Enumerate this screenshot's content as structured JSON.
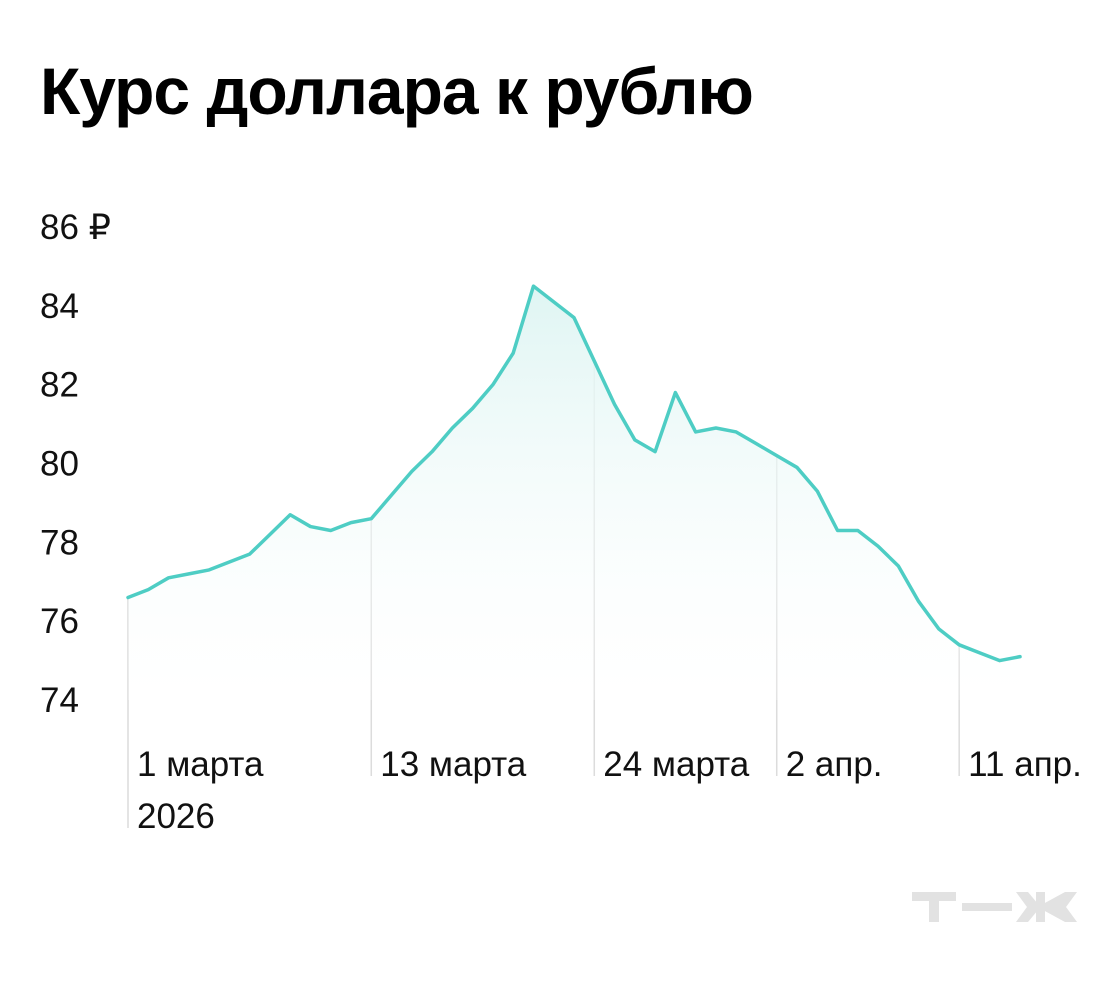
{
  "chart_data": {
    "type": "area",
    "title": "Курс доллара к рублю",
    "ylim": [
      74,
      86
    ],
    "yticks": [
      74,
      76,
      78,
      80,
      82,
      84,
      86
    ],
    "ytick_labels": [
      "74",
      "76",
      "78",
      "80",
      "82",
      "84",
      "86 ₽"
    ],
    "x_dates": [
      "2026-03-01",
      "2026-03-02",
      "2026-03-03",
      "2026-03-04",
      "2026-03-05",
      "2026-03-06",
      "2026-03-07",
      "2026-03-08",
      "2026-03-09",
      "2026-03-10",
      "2026-03-11",
      "2026-03-12",
      "2026-03-13",
      "2026-03-14",
      "2026-03-15",
      "2026-03-16",
      "2026-03-17",
      "2026-03-18",
      "2026-03-19",
      "2026-03-20",
      "2026-03-21",
      "2026-03-22",
      "2026-03-23",
      "2026-03-24",
      "2026-03-25",
      "2026-03-26",
      "2026-03-27",
      "2026-03-28",
      "2026-03-29",
      "2026-03-30",
      "2026-03-31",
      "2026-04-01",
      "2026-04-02",
      "2026-04-03",
      "2026-04-04",
      "2026-04-05",
      "2026-04-06",
      "2026-04-07",
      "2026-04-08",
      "2026-04-09",
      "2026-04-10",
      "2026-04-11",
      "2026-04-12",
      "2026-04-13",
      "2026-04-14"
    ],
    "series": [
      {
        "color": "#4ecdc4",
        "values": [
          76.6,
          76.8,
          77.1,
          77.2,
          77.3,
          77.5,
          77.7,
          78.2,
          78.7,
          78.4,
          78.3,
          78.5,
          78.6,
          79.2,
          79.8,
          80.3,
          80.9,
          81.4,
          82.0,
          82.8,
          84.5,
          84.1,
          83.7,
          82.6,
          81.5,
          80.6,
          80.3,
          81.8,
          80.8,
          80.9,
          80.8,
          80.5,
          80.2,
          79.9,
          79.3,
          78.3,
          78.3,
          77.9,
          77.4,
          76.5,
          75.8,
          75.4,
          75.2,
          75.0,
          75.1
        ]
      }
    ],
    "xticks": [
      {
        "date": "2026-03-01",
        "label": "1 марта",
        "sublabel": "2026"
      },
      {
        "date": "2026-03-13",
        "label": "13 марта"
      },
      {
        "date": "2026-03-24",
        "label": "24 марта"
      },
      {
        "date": "2026-04-02",
        "label": "2 апр."
      },
      {
        "date": "2026-04-11",
        "label": "11 апр."
      }
    ],
    "grid": "vertical lines at labeled dates",
    "colors": {
      "line": "#4ecdc4",
      "fill_top": "#e6f7f6",
      "gridline": "#dcdcdc"
    }
  },
  "logo": {
    "text": "Т—Ж"
  }
}
